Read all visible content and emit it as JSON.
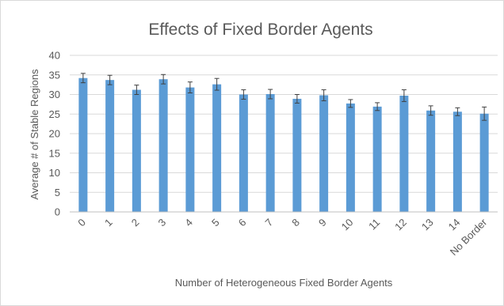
{
  "chart_data": {
    "type": "bar",
    "title": "Effects of Fixed Border Agents",
    "xlabel": "Number  of Heterogeneous  Fixed Border Agents",
    "ylabel": "Average # of Stable Regions",
    "categories": [
      "0",
      "1",
      "2",
      "3",
      "4",
      "5",
      "6",
      "7",
      "8",
      "9",
      "10",
      "11",
      "12",
      "13",
      "14",
      "No Border"
    ],
    "values": [
      34.2,
      33.7,
      31.2,
      33.9,
      31.8,
      32.6,
      30.0,
      30.1,
      28.9,
      29.8,
      27.7,
      26.9,
      29.7,
      25.9,
      25.6,
      25.1
    ],
    "errors": [
      1.2,
      1.2,
      1.2,
      1.2,
      1.4,
      1.5,
      1.2,
      1.2,
      1.1,
      1.4,
      1.0,
      1.0,
      1.5,
      1.2,
      1.0,
      1.7
    ],
    "ylim": [
      0,
      40
    ],
    "yticks": [
      0,
      5,
      10,
      15,
      20,
      25,
      30,
      35,
      40
    ],
    "grid": true,
    "legend": "none",
    "bar_color": "#5b9bd5",
    "error_color": "#404040"
  }
}
